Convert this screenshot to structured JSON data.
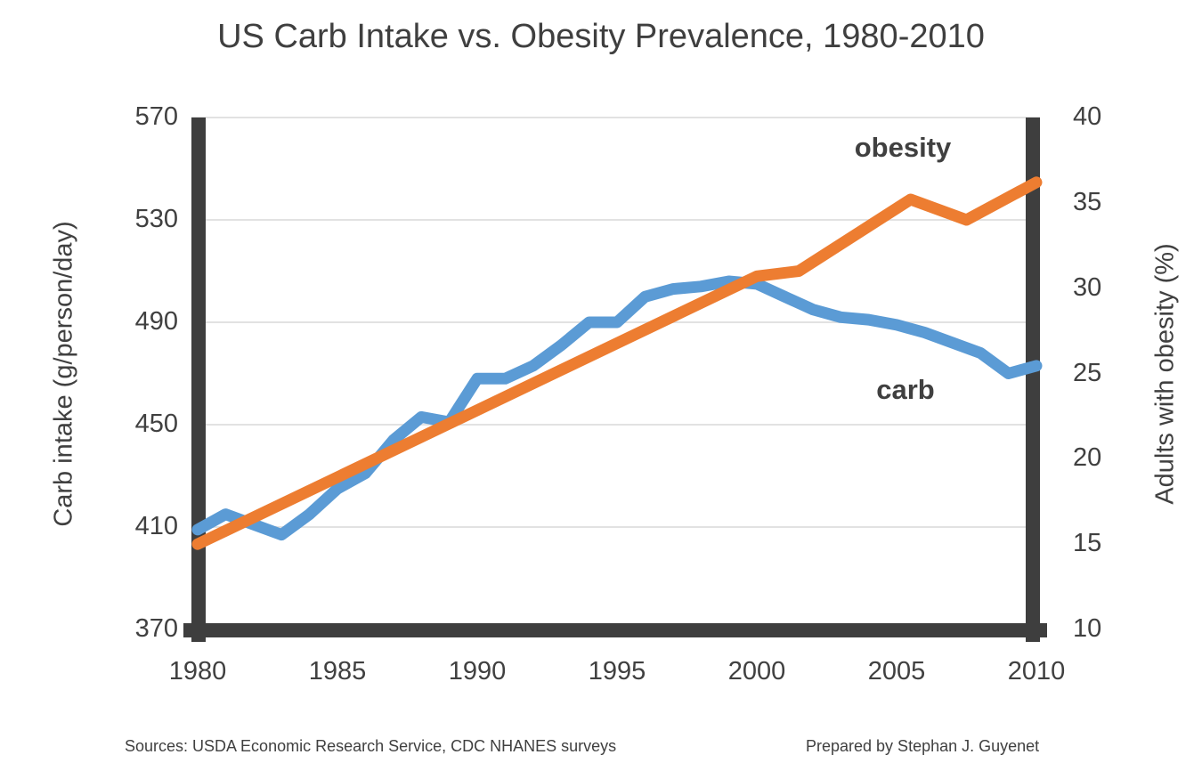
{
  "footer": {
    "sources": "Sources: USDA Economic Research Service, CDC NHANES surveys",
    "credit": "Prepared by Stephan J. Guyenet"
  },
  "colors": {
    "carb_line": "#5B9BD5",
    "obesity_line": "#ED7D31",
    "axis_frame": "#3E3E3E",
    "gridline": "#E2E2E2",
    "text": "#404040"
  },
  "chart_data": {
    "type": "line",
    "title": "US Carb Intake vs. Obesity Prevalence, 1980-2010",
    "x_axis": {
      "range": [
        1980,
        2010
      ],
      "ticks": [
        1980,
        1985,
        1990,
        1995,
        2000,
        2005,
        2010
      ]
    },
    "left_axis": {
      "label": "Carb intake (g/person/day)",
      "range": [
        370,
        570
      ],
      "ticks": [
        570,
        530,
        490,
        450,
        410,
        370
      ]
    },
    "right_axis": {
      "label": "Adults with obesity (%)",
      "range": [
        10,
        40
      ],
      "ticks": [
        40,
        35,
        30,
        25,
        20,
        15,
        10
      ]
    },
    "grid": {
      "horizontal": true,
      "vertical": false
    },
    "legend": "inline-labels",
    "series": [
      {
        "name": "carb",
        "axis": "left",
        "color": "#5B9BD5",
        "x": [
          1980,
          1981,
          1982,
          1983,
          1984,
          1985,
          1986,
          1987,
          1988,
          1989,
          1990,
          1991,
          1992,
          1993,
          1994,
          1995,
          1996,
          1997,
          1998,
          1999,
          2000,
          2001,
          2002,
          2003,
          2004,
          2005,
          2006,
          2007,
          2008,
          2009,
          2010
        ],
        "values": [
          409,
          415,
          411,
          407,
          415,
          425,
          431,
          444,
          453,
          451,
          468,
          468,
          473,
          481,
          490,
          490,
          500,
          503,
          504,
          506,
          505,
          500,
          495,
          492,
          491,
          489,
          486,
          482,
          478,
          470,
          473
        ]
      },
      {
        "name": "obesity",
        "axis": "right",
        "color": "#ED7D31",
        "points": [
          [
            1980,
            15.0
          ],
          [
            2000,
            30.7
          ],
          [
            2001.5,
            31.0
          ],
          [
            2005.5,
            35.2
          ],
          [
            2007.5,
            34.0
          ],
          [
            2010,
            36.2
          ]
        ]
      }
    ]
  }
}
